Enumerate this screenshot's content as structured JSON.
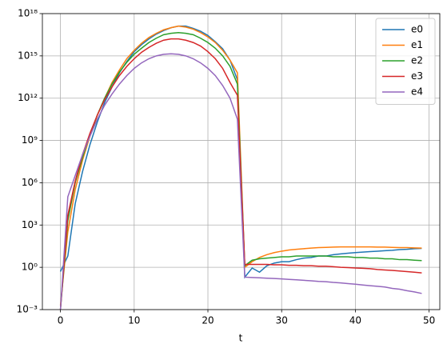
{
  "chart_data": {
    "type": "line",
    "xlabel": "t",
    "x": [
      0,
      1,
      2,
      3,
      4,
      5,
      6,
      7,
      8,
      9,
      10,
      11,
      12,
      13,
      14,
      15,
      16,
      17,
      18,
      19,
      20,
      21,
      22,
      23,
      24,
      25,
      26,
      27,
      28,
      29,
      30,
      31,
      32,
      33,
      34,
      35,
      36,
      37,
      38,
      39,
      40,
      41,
      42,
      43,
      44,
      45,
      46,
      47,
      48,
      49
    ],
    "xlim": [
      -2.45,
      51.45
    ],
    "xticks": [
      0,
      10,
      20,
      30,
      40,
      50
    ],
    "ylim": [
      0.001,
      1e+18
    ],
    "log_y": true,
    "yticks": [
      {
        "value": 0.001,
        "label": "10⁻³"
      },
      {
        "value": 1,
        "label": "10⁰"
      },
      {
        "value": 1000,
        "label": "10³"
      },
      {
        "value": 1000000.0,
        "label": "10⁶"
      },
      {
        "value": 1000000000.0,
        "label": "10⁹"
      },
      {
        "value": 1000000000000.0,
        "label": "10¹²"
      },
      {
        "value": 1000000000000000.0,
        "label": "10¹⁵"
      },
      {
        "value": 1e+18,
        "label": "10¹⁸"
      }
    ],
    "grid": true,
    "legend": "upper right",
    "series": [
      {
        "name": "e0",
        "color": "#1f77b4",
        "values": [
          0.5,
          6.3,
          32000.0,
          6300000.0,
          500000000.0,
          20000000000.0,
          500000000000.0,
          6300000000000.0,
          63000000000000.0,
          400000000000000.0,
          2000000000000000.0,
          6300000000000000.0,
          1.6e+16,
          3.5e+16,
          6.3e+16,
          1e+17,
          1.3e+17,
          1.3e+17,
          8.9e+16,
          5.6e+16,
          2.8e+16,
          1e+16,
          3200000000000000.0,
          500000000000000.0,
          20000000000000.0,
          0.2,
          0.89,
          0.45,
          1.3,
          2,
          2.5,
          2.5,
          3.5,
          4.5,
          5,
          6.3,
          6.3,
          7.9,
          8.9,
          10,
          11,
          12,
          13,
          14,
          15,
          16,
          18,
          19,
          21,
          22
        ]
      },
      {
        "name": "e1",
        "color": "#ff7f0e",
        "values": [
          0.002,
          320,
          320000.0,
          40000000.0,
          2000000000.0,
          63000000000.0,
          1000000000000.0,
          13000000000000.0,
          100000000000000.0,
          630000000000000.0,
          2500000000000000.0,
          7900000000000000.0,
          2e+16,
          4e+16,
          7.1e+16,
          1e+17,
          1.3e+17,
          1.1e+17,
          7.9e+16,
          4.5e+16,
          2.2e+16,
          8900000000000000.0,
          2500000000000000.0,
          500000000000000.0,
          63000000000000.0,
          1,
          2.5,
          5,
          7.9,
          11,
          14,
          17,
          19,
          21,
          23,
          25,
          26,
          27,
          28,
          28,
          28,
          28,
          28,
          27,
          27,
          26,
          25,
          25,
          24,
          23
        ]
      },
      {
        "name": "e2",
        "color": "#2ca02c",
        "values": [
          0.001,
          2000,
          1000000.0,
          63000000.0,
          2500000000.0,
          63000000000.0,
          1000000000000.0,
          10000000000000.0,
          71000000000000.0,
          350000000000000.0,
          1300000000000000.0,
          3500000000000000.0,
          8900000000000000.0,
          1.8e+16,
          3.2e+16,
          4e+16,
          4.5e+16,
          4e+16,
          3.2e+16,
          1.8e+16,
          8900000000000000.0,
          3500000000000000.0,
          1000000000000000.0,
          180000000000000.0,
          10000000000000.0,
          1.3,
          3.2,
          4,
          4.5,
          5,
          5.6,
          5.6,
          6.3,
          6.3,
          6.3,
          6.3,
          6.3,
          5.6,
          5.6,
          5.6,
          5,
          5,
          4.5,
          4.5,
          4,
          4,
          3.5,
          3.5,
          3.2,
          3
        ]
      },
      {
        "name": "e3",
        "color": "#d62728",
        "values": [
          0.001,
          5000,
          1300000.0,
          100000000.0,
          3200000000.0,
          63000000000.0,
          790000000000.0,
          6300000000000.0,
          40000000000000.0,
          180000000000000.0,
          630000000000000.0,
          1800000000000000.0,
          4000000000000000.0,
          7900000000000000.0,
          1.3e+16,
          1.6e+16,
          1.6e+16,
          1.3e+16,
          8900000000000000.0,
          5000000000000000.0,
          2000000000000000.0,
          630000000000000.0,
          130000000000000.0,
          13000000000000.0,
          1600000000000.0,
          1.6,
          1.6,
          1.6,
          1.6,
          1.5,
          1.5,
          1.4,
          1.4,
          1.3,
          1.3,
          1.2,
          1.2,
          1.1,
          1,
          0.95,
          0.9,
          0.85,
          0.8,
          0.7,
          0.65,
          0.6,
          0.55,
          0.5,
          0.45,
          0.4
        ]
      },
      {
        "name": "e4",
        "color": "#9467bd",
        "values": [
          0.001,
          100000.0,
          3200000.0,
          100000000.0,
          2000000000.0,
          32000000000.0,
          320000000000.0,
          2000000000000.0,
          10000000000000.0,
          40000000000000.0,
          130000000000000.0,
          320000000000000.0,
          630000000000000.0,
          1000000000000000.0,
          1300000000000000.0,
          1400000000000000.0,
          1300000000000000.0,
          1000000000000000.0,
          630000000000000.0,
          320000000000000.0,
          130000000000000.0,
          40000000000000.0,
          7900000000000.0,
          1000000000000.0,
          32000000000.0,
          0.2,
          0.19,
          0.18,
          0.17,
          0.16,
          0.15,
          0.14,
          0.13,
          0.12,
          0.11,
          0.1,
          0.095,
          0.085,
          0.078,
          0.07,
          0.063,
          0.056,
          0.05,
          0.045,
          0.04,
          0.032,
          0.028,
          0.022,
          0.018,
          0.014
        ]
      }
    ]
  }
}
